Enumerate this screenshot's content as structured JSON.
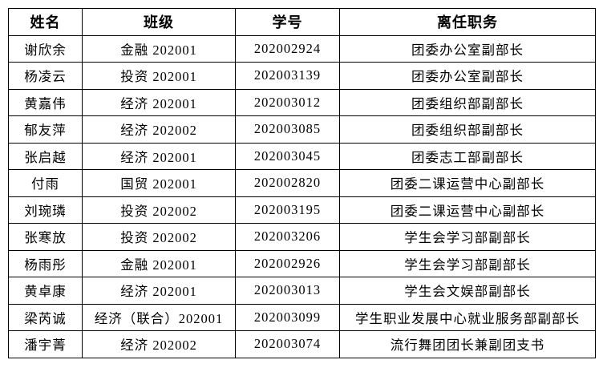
{
  "table": {
    "columns": [
      "姓名",
      "班级",
      "学号",
      "离任职务"
    ],
    "rows": [
      {
        "name": "谢欣余",
        "class_name": "金融 202001",
        "student_id": "202002924",
        "position": "团委办公室副部长"
      },
      {
        "name": "杨凌云",
        "class_name": "投资 202001",
        "student_id": "202003139",
        "position": "团委办公室副部长"
      },
      {
        "name": "黄嘉伟",
        "class_name": "经济 202001",
        "student_id": "202003012",
        "position": "团委组织部副部长"
      },
      {
        "name": "郁友萍",
        "class_name": "经济 202002",
        "student_id": "202003085",
        "position": "团委组织部副部长"
      },
      {
        "name": "张启越",
        "class_name": "经济 202001",
        "student_id": "202003045",
        "position": "团委志工部副部长"
      },
      {
        "name": "付雨",
        "class_name": "国贸 202001",
        "student_id": "202002820",
        "position": "团委二课运营中心副部长"
      },
      {
        "name": "刘琬璘",
        "class_name": "投资 202002",
        "student_id": "202003195",
        "position": "团委二课运营中心副部长"
      },
      {
        "name": "张寒放",
        "class_name": "投资 202002",
        "student_id": "202003206",
        "position": "学生会学习部副部长"
      },
      {
        "name": "杨雨彤",
        "class_name": "金融 202001",
        "student_id": "202002926",
        "position": "学生会学习部副部长"
      },
      {
        "name": "黄卓康",
        "class_name": "经济 202001",
        "student_id": "202003013",
        "position": "学生会文娱部副部长"
      },
      {
        "name": "梁芮诚",
        "class_name": "经济（联合）202001",
        "student_id": "202003099",
        "position": "学生职业发展中心就业服务部副部长"
      },
      {
        "name": "潘宇菁",
        "class_name": "经济 202002",
        "student_id": "202003074",
        "position": "流行舞团团长兼副团支书"
      }
    ]
  },
  "colors": {
    "border": "#000000",
    "text": "#000000",
    "background": "#ffffff"
  }
}
